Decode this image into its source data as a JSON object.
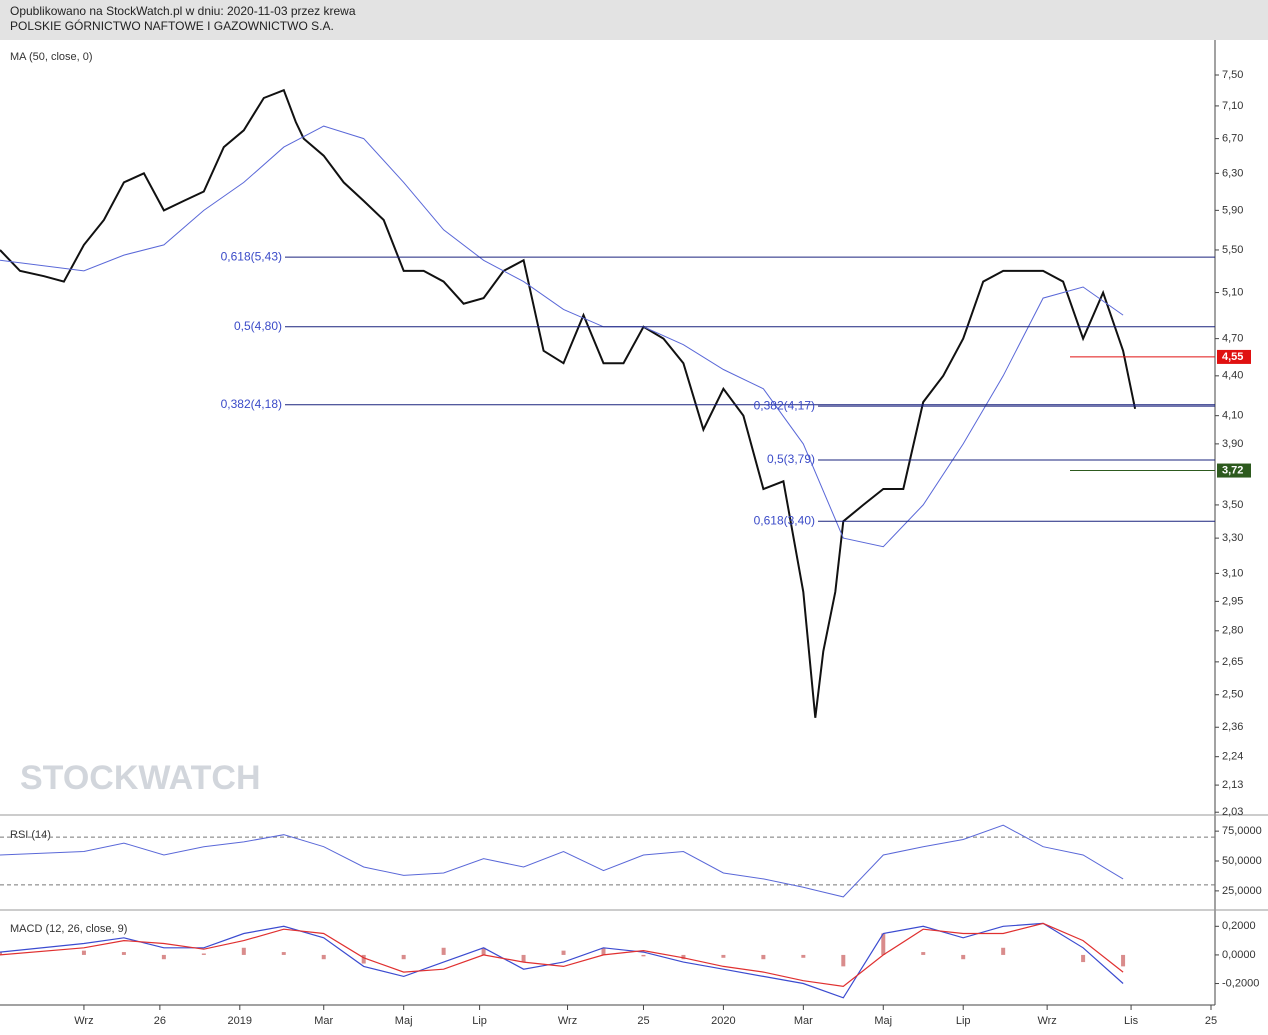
{
  "header": {
    "line1": "Opublikowano na StockWatch.pl w dniu: 2020-11-03 przez krewa",
    "line2": "POLSKIE GÓRNICTWO NAFTOWE I GAZOWNICTWO S.A."
  },
  "watermark": "STOCKWATCH",
  "chart_data": [
    {
      "type": "line",
      "title": "MA (50, close, 0)",
      "log_scale": true,
      "xlim": [
        -1.1,
        29.3
      ],
      "ylim": [
        2.02,
        7.98
      ],
      "xticks": [
        {
          "value": 1,
          "label": "Wrz"
        },
        {
          "value": 2.9,
          "label": "26"
        },
        {
          "value": 4.9,
          "label": "2019"
        },
        {
          "value": 7,
          "label": "Mar"
        },
        {
          "value": 9,
          "label": "Maj"
        },
        {
          "value": 10.9,
          "label": "Lip"
        },
        {
          "value": 13.1,
          "label": "Wrz"
        },
        {
          "value": 15,
          "label": "25"
        },
        {
          "value": 17,
          "label": "2020"
        },
        {
          "value": 19,
          "label": "Mar"
        },
        {
          "value": 21,
          "label": "Maj"
        },
        {
          "value": 23,
          "label": "Lip"
        },
        {
          "value": 25.1,
          "label": "Wrz"
        },
        {
          "value": 27.2,
          "label": "Lis"
        },
        {
          "value": 29.2,
          "label": "25"
        }
      ],
      "yticks": [
        {
          "value": 7.5,
          "label": "7,50"
        },
        {
          "value": 7.1,
          "label": "7,10"
        },
        {
          "value": 6.7,
          "label": "6,70"
        },
        {
          "value": 6.3,
          "label": "6,30"
        },
        {
          "value": 5.9,
          "label": "5,90"
        },
        {
          "value": 5.5,
          "label": "5,50"
        },
        {
          "value": 5.1,
          "label": "5,10"
        },
        {
          "value": 4.7,
          "label": "4,70"
        },
        {
          "value": 4.4,
          "label": "4,40"
        },
        {
          "value": 4.1,
          "label": "4,10"
        },
        {
          "value": 3.9,
          "label": "3,90"
        },
        {
          "value": 3.5,
          "label": "3,50"
        },
        {
          "value": 3.3,
          "label": "3,30"
        },
        {
          "value": 3.1,
          "label": "3,10"
        },
        {
          "value": 2.95,
          "label": "2,95"
        },
        {
          "value": 2.8,
          "label": "2,80"
        },
        {
          "value": 2.65,
          "label": "2,65"
        },
        {
          "value": 2.5,
          "label": "2,50"
        },
        {
          "value": 2.36,
          "label": "2,36"
        },
        {
          "value": 2.24,
          "label": "2,24"
        },
        {
          "value": 2.13,
          "label": "2,13"
        },
        {
          "value": 2.03,
          "label": "2,03"
        }
      ],
      "series": [
        {
          "color": "#111111",
          "x": [
            -1.1,
            -0.6,
            0,
            0.5,
            1,
            1.5,
            2,
            2.5,
            3,
            3.5,
            4,
            4.5,
            5,
            5.5,
            6,
            6.3,
            6.5,
            7,
            7.5,
            8,
            8.5,
            9,
            9.5,
            10,
            10.5,
            11,
            11.5,
            12,
            12.5,
            13,
            13.5,
            14,
            14.5,
            15,
            15.5,
            16,
            16.5,
            17,
            17.5,
            18,
            18.5,
            19,
            19.3,
            19.5,
            19.8,
            20,
            20.5,
            21,
            21.5,
            22,
            22.5,
            23,
            23.5,
            24,
            24.5,
            25,
            25.5,
            26,
            26.5,
            27,
            27.3
          ],
          "values": [
            5.5,
            5.3,
            5.25,
            5.2,
            5.55,
            5.8,
            6.2,
            6.3,
            5.9,
            6.0,
            6.1,
            6.6,
            6.8,
            7.2,
            7.3,
            6.9,
            6.7,
            6.5,
            6.2,
            6.0,
            5.8,
            5.3,
            5.3,
            5.2,
            5.0,
            5.05,
            5.3,
            5.4,
            4.6,
            4.5,
            4.9,
            4.5,
            4.5,
            4.8,
            4.7,
            4.5,
            4.0,
            4.3,
            4.1,
            3.6,
            3.65,
            3.0,
            2.4,
            2.7,
            3.0,
            3.4,
            3.5,
            3.6,
            3.6,
            4.2,
            4.4,
            4.7,
            5.2,
            5.3,
            5.3,
            5.3,
            5.2,
            4.7,
            5.1,
            4.6,
            4.15
          ]
        },
        {
          "color": "#5a68d8",
          "x": [
            -1.1,
            1,
            2,
            3,
            4,
            5,
            6,
            7,
            8,
            9,
            10,
            11,
            12,
            13,
            14,
            15,
            16,
            17,
            18,
            19,
            20,
            21,
            22,
            23,
            24,
            25,
            26,
            27
          ],
          "values": [
            5.4,
            5.3,
            5.45,
            5.55,
            5.9,
            6.2,
            6.6,
            6.85,
            6.7,
            6.2,
            5.7,
            5.4,
            5.2,
            4.95,
            4.8,
            4.8,
            4.65,
            4.45,
            4.3,
            3.9,
            3.3,
            3.25,
            3.5,
            3.9,
            4.4,
            5.05,
            5.15,
            4.9
          ]
        }
      ],
      "fib_levels": [
        {
          "value": 5.43,
          "label": "0,618(5,43)"
        },
        {
          "value": 4.8,
          "label": "0,5(4,80)"
        },
        {
          "value": 4.18,
          "label": "0,382(4,18)"
        },
        {
          "value": 4.17,
          "label": "0,382(4,17)"
        },
        {
          "value": 3.79,
          "label": "0,5(3,79)"
        },
        {
          "value": 3.4,
          "label": "0,618(3,40)"
        }
      ],
      "price_labels": [
        {
          "value": 4.55,
          "label": "4,55",
          "color": "#e01010"
        },
        {
          "value": 3.72,
          "label": "3,72",
          "color": "#2d5a1e"
        }
      ]
    },
    {
      "type": "line",
      "title": "RSI (14)",
      "ylim": [
        9,
        86
      ],
      "yticks": [
        {
          "value": 75,
          "label": "75,0000"
        },
        {
          "value": 50,
          "label": "50,0000"
        },
        {
          "value": 25,
          "label": "25,0000"
        }
      ],
      "levels": [
        70,
        30
      ],
      "series": [
        {
          "color": "#5a68d8",
          "x": [
            -1.1,
            1,
            2,
            3,
            4,
            5,
            6,
            7,
            8,
            9,
            10,
            11,
            12,
            13,
            14,
            15,
            16,
            17,
            18,
            19,
            20,
            21,
            22,
            23,
            24,
            25,
            26,
            27
          ],
          "values": [
            55,
            58,
            65,
            55,
            62,
            66,
            72,
            62,
            45,
            38,
            40,
            52,
            45,
            58,
            42,
            55,
            58,
            40,
            35,
            28,
            20,
            55,
            62,
            68,
            80,
            62,
            55,
            35
          ]
        }
      ]
    },
    {
      "type": "macd",
      "title": "MACD (12, 26, close, 9)",
      "ylim": [
        -0.35,
        0.3
      ],
      "yticks": [
        {
          "value": 0.2,
          "label": "0,2000"
        },
        {
          "value": 0,
          "label": "0,0000"
        },
        {
          "value": -0.2,
          "label": "-0,2000"
        }
      ],
      "x": [
        -1.1,
        1,
        2,
        3,
        4,
        5,
        6,
        7,
        8,
        9,
        10,
        11,
        12,
        13,
        14,
        15,
        16,
        17,
        18,
        19,
        20,
        21,
        22,
        23,
        24,
        25,
        26,
        27
      ],
      "series": [
        {
          "color": "#3b4bd0",
          "values": [
            0.02,
            0.08,
            0.12,
            0.05,
            0.05,
            0.15,
            0.2,
            0.12,
            -0.08,
            -0.15,
            -0.05,
            0.05,
            -0.1,
            -0.05,
            0.05,
            0.02,
            -0.05,
            -0.1,
            -0.15,
            -0.2,
            -0.3,
            0.15,
            0.2,
            0.12,
            0.2,
            0.22,
            0.05,
            -0.2
          ]
        },
        {
          "color": "#e03030",
          "values": [
            0.0,
            0.05,
            0.1,
            0.08,
            0.04,
            0.1,
            0.18,
            0.15,
            -0.02,
            -0.12,
            -0.1,
            0.0,
            -0.05,
            -0.08,
            0.0,
            0.03,
            -0.02,
            -0.08,
            -0.12,
            -0.18,
            -0.22,
            0.0,
            0.18,
            0.15,
            0.15,
            0.22,
            0.1,
            -0.12
          ]
        }
      ],
      "histogram": {
        "color": "#c04040",
        "values": [
          0.02,
          0.03,
          0.02,
          -0.03,
          0.01,
          0.05,
          0.02,
          -0.03,
          -0.06,
          -0.03,
          0.05,
          0.05,
          -0.05,
          0.03,
          0.05,
          -0.01,
          -0.03,
          -0.02,
          -0.03,
          -0.02,
          -0.08,
          0.15,
          0.02,
          -0.03,
          0.05,
          0.0,
          -0.05,
          -0.08
        ]
      }
    }
  ]
}
